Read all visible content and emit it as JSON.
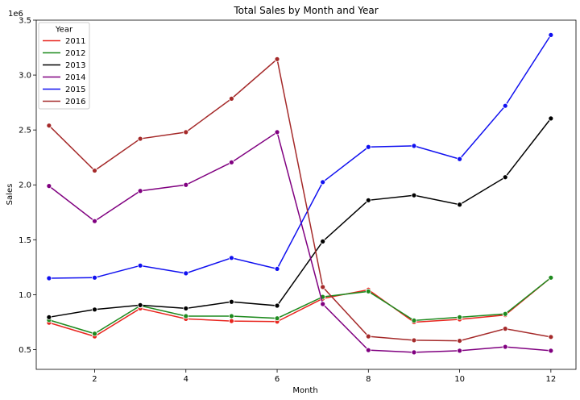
{
  "chart_data": {
    "type": "line",
    "title": "Total Sales by Month and Year",
    "xlabel": "Month",
    "ylabel": "Sales",
    "y_scale_label": "1e6",
    "xlim": [
      0.72,
      12.55
    ],
    "ylim": [
      320000,
      3500000
    ],
    "x_ticks": [
      2,
      4,
      6,
      8,
      10,
      12
    ],
    "y_ticks": [
      500000,
      1000000,
      1500000,
      2000000,
      2500000,
      3000000,
      3500000
    ],
    "y_tick_labels": [
      "0.5",
      "1.0",
      "1.5",
      "2.0",
      "2.5",
      "3.0",
      "3.5"
    ],
    "legend_title": "Year",
    "legend_position": "top-left",
    "x": [
      1,
      2,
      3,
      4,
      5,
      6,
      7,
      8,
      9,
      10,
      11,
      12
    ],
    "series": [
      {
        "name": "2011",
        "color": "#e8261f",
        "values": [
          745000,
          620000,
          875000,
          780000,
          760000,
          755000,
          965000,
          1045000,
          750000,
          775000,
          815000,
          1155000
        ]
      },
      {
        "name": "2012",
        "color": "#1e8a1e",
        "values": [
          770000,
          645000,
          900000,
          805000,
          805000,
          785000,
          980000,
          1030000,
          765000,
          795000,
          825000,
          1155000
        ]
      },
      {
        "name": "2013",
        "color": "#000000",
        "values": [
          795000,
          865000,
          905000,
          875000,
          935000,
          900000,
          1485000,
          1860000,
          1905000,
          1820000,
          2070000,
          2605000
        ]
      },
      {
        "name": "2014",
        "color": "#800080",
        "values": [
          1990000,
          1670000,
          1945000,
          2000000,
          2205000,
          2480000,
          915000,
          495000,
          475000,
          490000,
          525000,
          490000
        ]
      },
      {
        "name": "2015",
        "color": "#1010f0",
        "values": [
          1150000,
          1155000,
          1265000,
          1195000,
          1335000,
          1235000,
          2025000,
          2345000,
          2355000,
          2235000,
          2720000,
          3365000
        ]
      },
      {
        "name": "2016",
        "color": "#a52a2a",
        "values": [
          2540000,
          2130000,
          2420000,
          2480000,
          2785000,
          3145000,
          1070000,
          620000,
          585000,
          580000,
          690000,
          615000
        ]
      }
    ]
  }
}
